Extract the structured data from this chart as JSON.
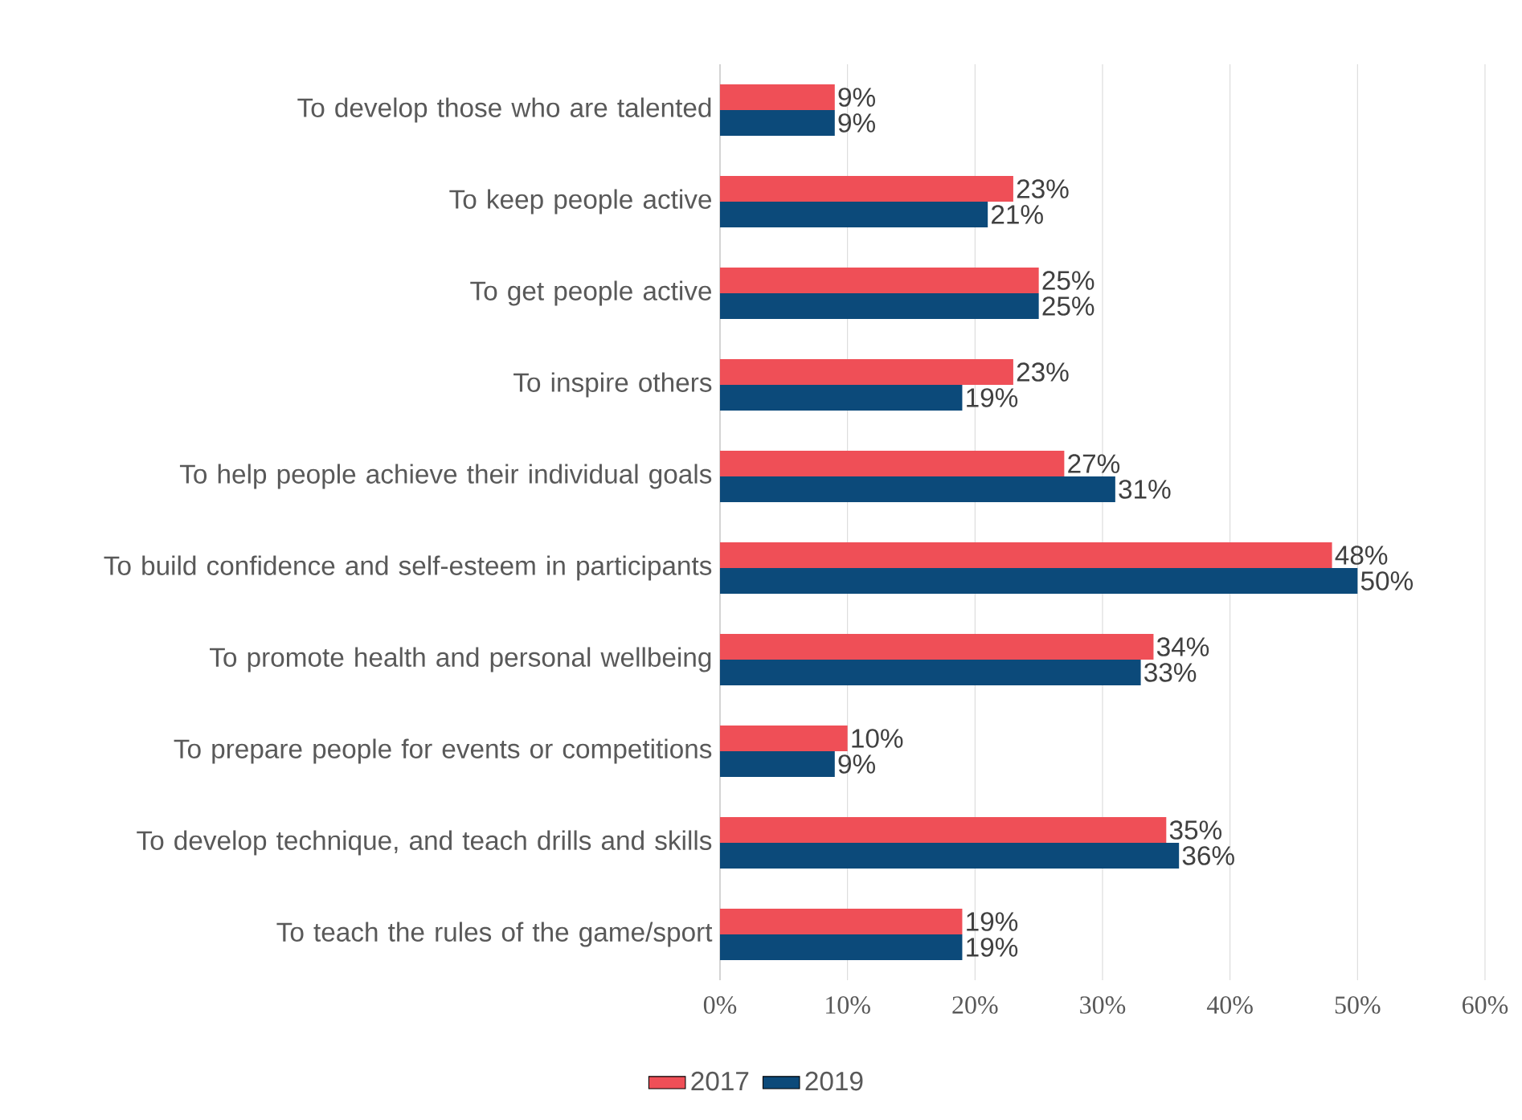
{
  "chart_data": {
    "type": "bar",
    "orientation": "horizontal",
    "categories": [
      "To develop those who are talented",
      "To keep people active",
      "To get people active",
      "To inspire others",
      "To help people achieve their individual goals",
      "To build confidence and self-esteem in participants",
      "To promote health and personal wellbeing",
      "To prepare people for events or competitions",
      "To develop technique, and teach drills and skills",
      "To teach the rules of the game/sport"
    ],
    "series": [
      {
        "name": "2017",
        "color": "#ef4f57",
        "values": [
          9,
          23,
          25,
          23,
          27,
          48,
          34,
          10,
          35,
          19
        ],
        "value_labels": [
          "9%",
          "23%",
          "25%",
          "23%",
          "27%",
          "48%",
          "34%",
          "10%",
          "35%",
          "19%"
        ]
      },
      {
        "name": "2019",
        "color": "#0c4a7a",
        "values": [
          9,
          21,
          25,
          19,
          31,
          50,
          33,
          9,
          36,
          19
        ],
        "value_labels": [
          "9%",
          "21%",
          "25%",
          "19%",
          "31%",
          "50%",
          "33%",
          "9%",
          "36%",
          "19%"
        ]
      }
    ],
    "xlim": [
      0,
      60
    ],
    "xticks": [
      {
        "value": 0,
        "label": "0%"
      },
      {
        "value": 10,
        "label": "10%"
      },
      {
        "value": 20,
        "label": "20%"
      },
      {
        "value": 30,
        "label": "30%"
      },
      {
        "value": 40,
        "label": "40%"
      },
      {
        "value": 50,
        "label": "50%"
      },
      {
        "value": 60,
        "label": "60%"
      }
    ],
    "grid": "x",
    "legend": "bottom"
  }
}
